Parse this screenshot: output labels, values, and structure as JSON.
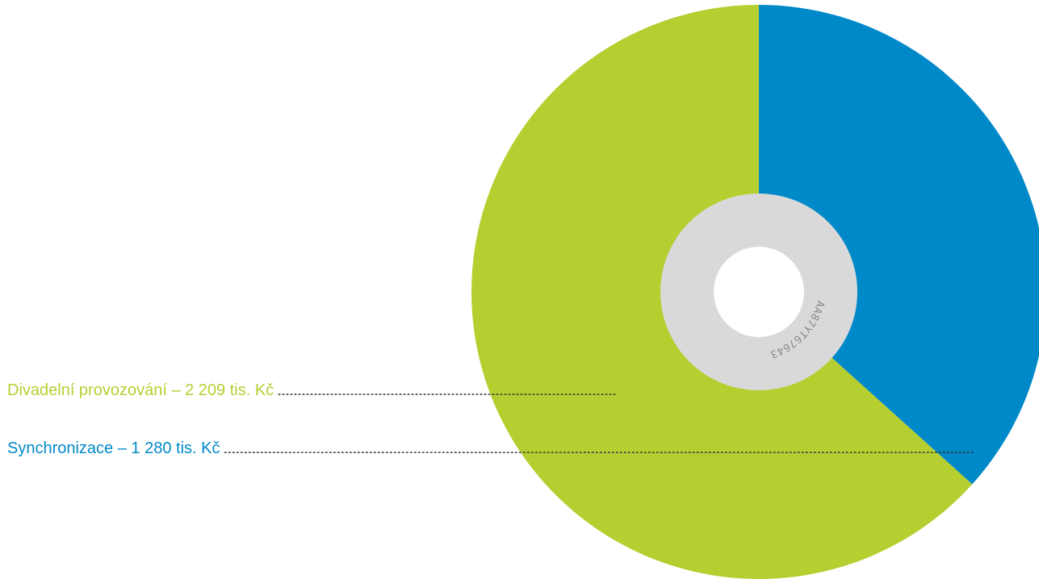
{
  "chart_data": {
    "type": "pie",
    "slices": [
      {
        "label": "Synchronizace – 1 280 tis. Kč",
        "value": 1280,
        "color": "#0089c9"
      },
      {
        "label": "Divadelní provozování – 2 209 tis. Kč",
        "value": 2209,
        "color": "#b5cf31"
      }
    ],
    "total": 3489,
    "start_angle_deg": 0,
    "direction": "clockwise",
    "disc_hub_color": "#d9d9d9",
    "disc_hole_color": "#ffffff",
    "disc_serial": "AA87YT67643"
  }
}
